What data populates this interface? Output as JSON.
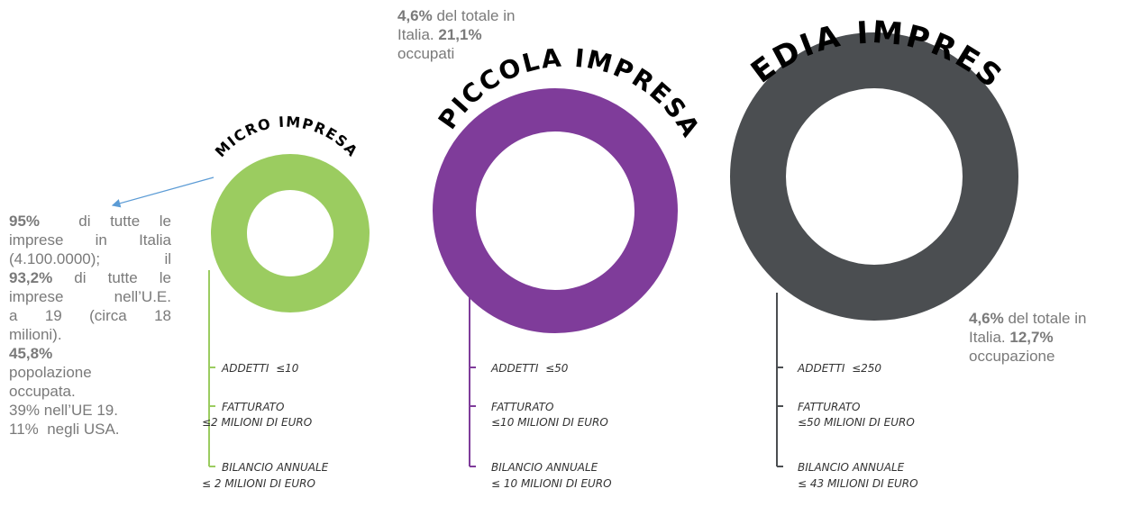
{
  "colors": {
    "micro": "#9bcc60",
    "piccola": "#7f3c9a",
    "media": "#4b4e51",
    "text": "#7a7a7a",
    "arrow": "#5b9bd5"
  },
  "enterprises": [
    {
      "key": "micro",
      "title": "MICRO IMPRESA",
      "criteria": [
        {
          "lines": [
            "ADDETTI  ≤10"
          ]
        },
        {
          "lines": [
            "FATTURATO",
            "≤2 MILIONI DI EURO"
          ]
        },
        {
          "lines": [
            "BILANCIO ANNUALE",
            "≤ 2 MILIONI DI EURO"
          ]
        }
      ]
    },
    {
      "key": "piccola",
      "title": "PICCOLA IMPRESA",
      "criteria": [
        {
          "lines": [
            "ADDETTI  ≤50"
          ]
        },
        {
          "lines": [
            "FATTURATO",
            "≤10 MILIONI DI EURO"
          ]
        },
        {
          "lines": [
            "BILANCIO ANNUALE",
            "≤ 10 MILIONI DI EURO"
          ]
        }
      ]
    },
    {
      "key": "media",
      "title": "MEDIA IMPRESA",
      "criteria": [
        {
          "lines": [
            "ADDETTI  ≤250"
          ]
        },
        {
          "lines": [
            "FATTURATO",
            "≤50 MILIONI DI EURO"
          ]
        },
        {
          "lines": [
            "BILANCIO ANNUALE",
            "≤ 43 MILIONI DI EURO"
          ]
        }
      ]
    }
  ],
  "notes": {
    "micro": {
      "pct_firms": "95%",
      "justified_lines": [
        "di tutte le",
        "imprese in Italia",
        "(4.100.0000);   il"
      ],
      "pct_eu": "93,2%",
      "eu_lines": [
        "di tutte le",
        "imprese nell’U.E.",
        "a 19 (circa 18"
      ],
      "line_milioni": "milioni).",
      "pct_employed": "45,8%",
      "line_popolazione": "popolazione",
      "line_occupata": "occupata.",
      "line_ue": "39% nell’UE 19.",
      "line_usa": "11%  negli USA."
    },
    "piccola": {
      "pct_total": "4,6%",
      "text_total": " del totale in",
      "text_italia": "Italia. ",
      "pct_employed": "21,1%",
      "text_employed": "occupati"
    },
    "media": {
      "pct_total": "4,6%",
      "text_total": " del totale in",
      "text_italia": "Italia. ",
      "pct_employed": "12,7%",
      "text_employed": "occupazione"
    }
  }
}
